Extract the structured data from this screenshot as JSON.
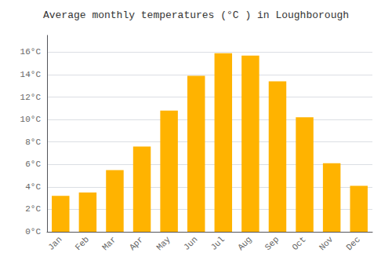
{
  "chart_data": {
    "type": "bar",
    "title": "Average monthly temperatures (°C ) in Loughborough",
    "categories": [
      "Jan",
      "Feb",
      "Mar",
      "Apr",
      "May",
      "Jun",
      "Jul",
      "Aug",
      "Sep",
      "Oct",
      "Nov",
      "Dec"
    ],
    "values": [
      3.2,
      3.5,
      5.5,
      7.6,
      10.8,
      13.9,
      15.9,
      15.7,
      13.4,
      10.2,
      6.1,
      4.1
    ],
    "color": "#FFB300",
    "ylim": [
      0,
      17.5
    ],
    "yticks": [
      {
        "value": 0,
        "label": "0°C"
      },
      {
        "value": 2,
        "label": "2°C"
      },
      {
        "value": 4,
        "label": "4°C"
      },
      {
        "value": 6,
        "label": "6°C"
      },
      {
        "value": 8,
        "label": "8°C"
      },
      {
        "value": 10,
        "label": "10°C"
      },
      {
        "value": 12,
        "label": "12°C"
      },
      {
        "value": 14,
        "label": "14°C"
      },
      {
        "value": 16,
        "label": "16°C"
      }
    ],
    "grid": true
  }
}
